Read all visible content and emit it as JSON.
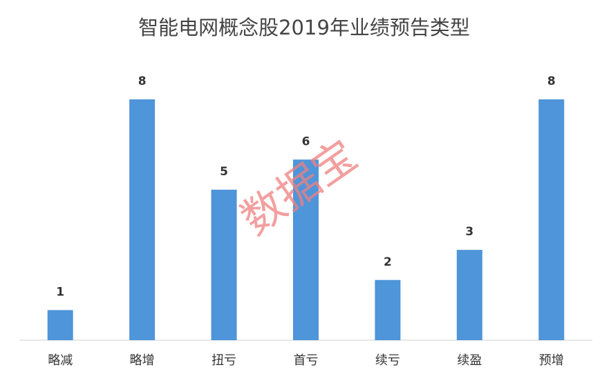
{
  "chart_data": {
    "type": "bar",
    "title": "智能电网概念股2019年业绩预告类型",
    "categories": [
      "略减",
      "略增",
      "扭亏",
      "首亏",
      "续亏",
      "续盈",
      "预增"
    ],
    "values": [
      1,
      8,
      5,
      6,
      2,
      3,
      8
    ],
    "color": "#4e95d9",
    "ylim": [
      0,
      8
    ],
    "watermark": "数据宝"
  }
}
